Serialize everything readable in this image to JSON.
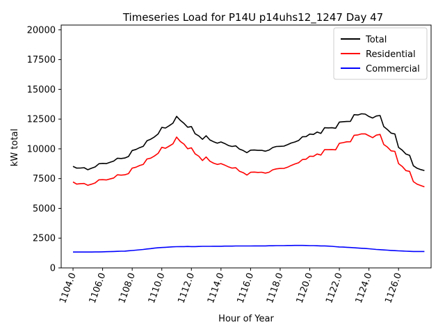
{
  "chart_data": {
    "type": "line",
    "title": "Timeseries Load for P14U p14uhs12_1247  Day 47",
    "xlabel": "Hour of Year",
    "ylabel": "kW total",
    "xlim": [
      1103.2,
      1128.2
    ],
    "ylim": [
      0,
      20400
    ],
    "xticks": [
      1104,
      1106,
      1108,
      1110,
      1112,
      1114,
      1116,
      1118,
      1120,
      1122,
      1124,
      1126
    ],
    "xtick_labels": [
      "1104.0",
      "1106.0",
      "1108.0",
      "1110.0",
      "1112.0",
      "1114.0",
      "1116.0",
      "1118.0",
      "1120.0",
      "1122.0",
      "1124.0",
      "1126.0"
    ],
    "yticks": [
      0,
      2500,
      5000,
      7500,
      10000,
      12500,
      15000,
      17500,
      20000
    ],
    "ytick_labels": [
      "0",
      "2500",
      "5000",
      "7500",
      "10000",
      "12500",
      "15000",
      "17500",
      "20000"
    ],
    "legend_position": "top-right",
    "x": [
      1104.0,
      1104.25,
      1104.5,
      1104.75,
      1105.0,
      1105.25,
      1105.5,
      1105.75,
      1106.0,
      1106.25,
      1106.5,
      1106.75,
      1107.0,
      1107.25,
      1107.5,
      1107.75,
      1108.0,
      1108.25,
      1108.5,
      1108.75,
      1109.0,
      1109.25,
      1109.5,
      1109.75,
      1110.0,
      1110.25,
      1110.5,
      1110.75,
      1111.0,
      1111.25,
      1111.5,
      1111.75,
      1112.0,
      1112.25,
      1112.5,
      1112.75,
      1113.0,
      1113.25,
      1113.5,
      1113.75,
      1114.0,
      1114.25,
      1114.5,
      1114.75,
      1115.0,
      1115.25,
      1115.5,
      1115.75,
      1116.0,
      1116.25,
      1116.5,
      1116.75,
      1117.0,
      1117.25,
      1117.5,
      1117.75,
      1118.0,
      1118.25,
      1118.5,
      1118.75,
      1119.0,
      1119.25,
      1119.5,
      1119.75,
      1120.0,
      1120.25,
      1120.5,
      1120.75,
      1121.0,
      1121.25,
      1121.5,
      1121.75,
      1122.0,
      1122.25,
      1122.5,
      1122.75,
      1123.0,
      1123.25,
      1123.5,
      1123.75,
      1124.0,
      1124.25,
      1124.5,
      1124.75,
      1125.0,
      1125.25,
      1125.5,
      1125.75,
      1126.0,
      1126.25,
      1126.5,
      1126.75,
      1127.0,
      1127.25,
      1127.5,
      1127.75
    ],
    "series": [
      {
        "name": "Total",
        "color": "#000000",
        "values": [
          8530,
          8380,
          8390,
          8420,
          8250,
          8370,
          8480,
          8750,
          8780,
          8760,
          8870,
          8970,
          9210,
          9190,
          9230,
          9360,
          9860,
          9950,
          10100,
          10220,
          10680,
          10810,
          11000,
          11250,
          11800,
          11750,
          11940,
          12160,
          12730,
          12400,
          12140,
          11820,
          11870,
          11270,
          11090,
          10800,
          11100,
          10750,
          10600,
          10480,
          10580,
          10450,
          10280,
          10200,
          10250,
          9980,
          9860,
          9680,
          9890,
          9900,
          9870,
          9880,
          9800,
          9900,
          10110,
          10200,
          10210,
          10230,
          10350,
          10490,
          10580,
          10700,
          11010,
          11030,
          11240,
          11210,
          11410,
          11300,
          11770,
          11760,
          11770,
          11730,
          12250,
          12280,
          12300,
          12310,
          12870,
          12850,
          12950,
          12920,
          12720,
          12590,
          12760,
          12800,
          11870,
          11620,
          11320,
          11250,
          10120,
          9890,
          9560,
          9460,
          8580,
          8370,
          8260,
          8180
        ]
      },
      {
        "name": "Residential",
        "color": "#ff0000",
        "values": [
          7220,
          7040,
          7080,
          7090,
          6940,
          7030,
          7140,
          7400,
          7410,
          7390,
          7470,
          7550,
          7820,
          7790,
          7820,
          7920,
          8380,
          8460,
          8600,
          8700,
          9150,
          9220,
          9400,
          9620,
          10130,
          10050,
          10230,
          10420,
          10990,
          10620,
          10400,
          10010,
          10090,
          9580,
          9380,
          9020,
          9320,
          8960,
          8800,
          8690,
          8760,
          8640,
          8490,
          8380,
          8410,
          8120,
          8000,
          7800,
          8030,
          8050,
          8020,
          8040,
          7960,
          8040,
          8240,
          8320,
          8350,
          8360,
          8460,
          8610,
          8730,
          8830,
          9100,
          9130,
          9380,
          9370,
          9570,
          9480,
          9930,
          9930,
          9940,
          9920,
          10470,
          10520,
          10590,
          10600,
          11140,
          11170,
          11260,
          11260,
          11100,
          10940,
          11150,
          11210,
          10370,
          10150,
          9830,
          9790,
          8760,
          8520,
          8170,
          8110,
          7250,
          7040,
          6920,
          6810
        ]
      },
      {
        "name": "Commercial",
        "color": "#0000ff",
        "values": [
          1330,
          1330,
          1330,
          1330,
          1330,
          1330,
          1340,
          1340,
          1350,
          1360,
          1370,
          1380,
          1390,
          1400,
          1410,
          1440,
          1460,
          1490,
          1520,
          1550,
          1590,
          1620,
          1660,
          1690,
          1710,
          1730,
          1750,
          1770,
          1780,
          1790,
          1790,
          1800,
          1790,
          1790,
          1800,
          1810,
          1810,
          1810,
          1820,
          1820,
          1820,
          1830,
          1830,
          1830,
          1840,
          1840,
          1840,
          1840,
          1840,
          1850,
          1850,
          1850,
          1850,
          1860,
          1860,
          1870,
          1870,
          1870,
          1880,
          1880,
          1890,
          1890,
          1890,
          1880,
          1870,
          1870,
          1860,
          1850,
          1850,
          1830,
          1810,
          1780,
          1760,
          1750,
          1730,
          1710,
          1690,
          1670,
          1650,
          1630,
          1610,
          1580,
          1550,
          1530,
          1510,
          1490,
          1470,
          1450,
          1430,
          1420,
          1400,
          1390,
          1380,
          1380,
          1380,
          1380
        ]
      }
    ]
  }
}
